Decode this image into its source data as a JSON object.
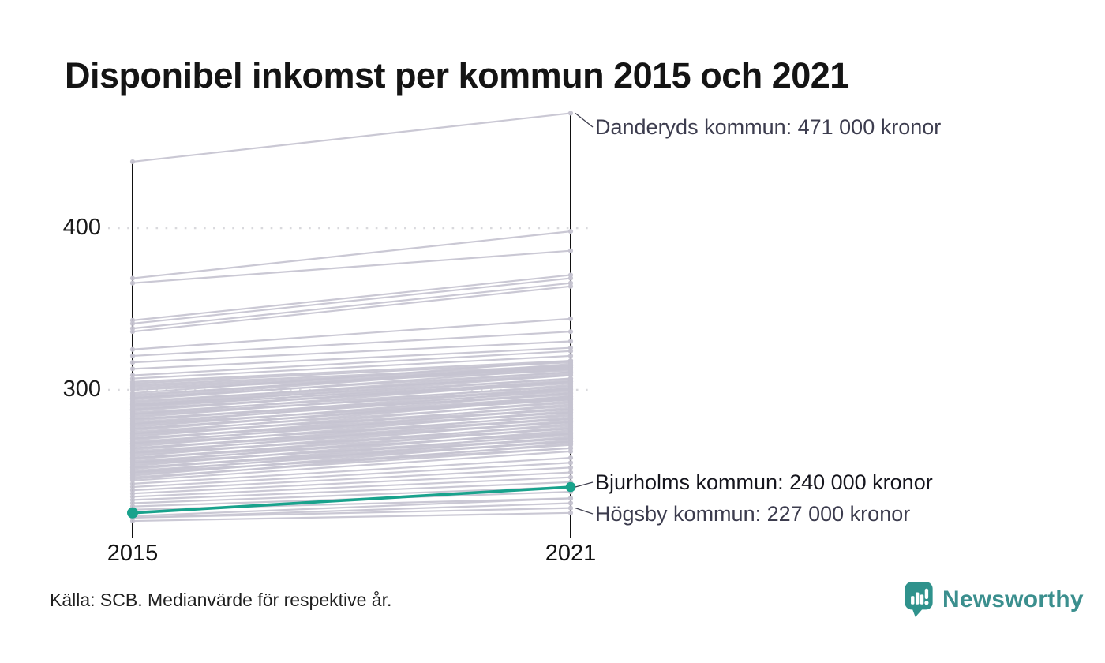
{
  "title": "Disponibel inkomst per kommun 2015 och 2021",
  "source_note": "Källa: SCB. Medianvärde för respektive år.",
  "branding": {
    "logo_text": "Newsworthy",
    "logo_color": "#2f928c"
  },
  "chart_data": {
    "type": "line",
    "subtype": "slopegraph",
    "title": "Disponibel inkomst per kommun 2015 och 2021",
    "x": [
      "2015",
      "2021"
    ],
    "xlabel": "",
    "ylabel": "",
    "unit": "tusen kronor",
    "yticks": [
      400,
      300
    ],
    "ylim": [
      215,
      480
    ],
    "grid": "dotted horizontal lines at yticks",
    "legend": "none",
    "line_color": "#c5c3d0",
    "highlight_color": "#18a28c",
    "axis_color": "#111111",
    "grid_color": "#d9d9dd",
    "highlight_series": {
      "name": "Bjurholms kommun",
      "values": [
        224,
        240
      ]
    },
    "annotations": [
      {
        "series": "Danderyds kommun",
        "x": "2021",
        "value": 471,
        "label": "Danderyds kommun: 471 000 kronor"
      },
      {
        "series": "Bjurholms kommun",
        "x": "2021",
        "value": 240,
        "label": "Bjurholms kommun: 240 000 kronor",
        "highlight": true
      },
      {
        "series": "Högsby kommun",
        "x": "2021",
        "value": 227,
        "label": "Högsby kommun: 227 000 kronor"
      }
    ],
    "lines": [
      [
        441,
        471
      ],
      [
        369,
        398
      ],
      [
        366,
        386
      ],
      [
        343,
        371
      ],
      [
        341,
        369
      ],
      [
        338,
        366
      ],
      [
        336,
        364
      ],
      [
        325,
        344
      ],
      [
        321,
        336
      ],
      [
        317,
        330
      ],
      [
        313,
        326
      ],
      [
        309,
        324
      ],
      [
        307,
        321
      ],
      [
        305,
        318
      ],
      [
        304,
        317
      ],
      [
        303,
        315
      ],
      [
        302,
        314
      ],
      [
        301,
        313
      ],
      [
        300,
        312
      ],
      [
        298,
        318
      ],
      [
        297,
        314
      ],
      [
        296,
        316
      ],
      [
        295,
        311
      ],
      [
        294,
        313
      ],
      [
        293,
        309
      ],
      [
        292,
        311
      ],
      [
        291,
        307
      ],
      [
        290,
        309
      ],
      [
        290,
        305
      ],
      [
        289,
        307
      ],
      [
        288,
        304
      ],
      [
        287,
        306
      ],
      [
        286,
        302
      ],
      [
        285,
        305
      ],
      [
        284,
        301
      ],
      [
        283,
        303
      ],
      [
        282,
        299
      ],
      [
        281,
        301
      ],
      [
        280,
        298
      ],
      [
        279,
        300
      ],
      [
        278,
        296
      ],
      [
        277,
        298
      ],
      [
        276,
        294
      ],
      [
        275,
        296
      ],
      [
        274,
        292
      ],
      [
        273,
        295
      ],
      [
        272,
        290
      ],
      [
        271,
        293
      ],
      [
        270,
        288
      ],
      [
        269,
        291
      ],
      [
        268,
        286
      ],
      [
        267,
        289
      ],
      [
        266,
        284
      ],
      [
        265,
        287
      ],
      [
        264,
        282
      ],
      [
        263,
        285
      ],
      [
        262,
        280
      ],
      [
        261,
        283
      ],
      [
        260,
        278
      ],
      [
        259,
        281
      ],
      [
        258,
        276
      ],
      [
        257,
        279
      ],
      [
        256,
        274
      ],
      [
        255,
        277
      ],
      [
        254,
        272
      ],
      [
        253,
        275
      ],
      [
        252,
        270
      ],
      [
        251,
        273
      ],
      [
        250,
        268
      ],
      [
        249,
        271
      ],
      [
        248,
        266
      ],
      [
        247,
        269
      ],
      [
        246,
        264
      ],
      [
        245,
        267
      ],
      [
        244,
        262
      ],
      [
        288,
        305
      ],
      [
        282,
        297
      ],
      [
        276,
        295
      ],
      [
        270,
        286
      ],
      [
        264,
        280
      ],
      [
        258,
        273
      ],
      [
        252,
        268
      ],
      [
        285,
        300
      ],
      [
        279,
        294
      ],
      [
        273,
        288
      ],
      [
        267,
        282
      ],
      [
        261,
        276
      ],
      [
        255,
        270
      ],
      [
        249,
        264
      ],
      [
        291,
        310
      ],
      [
        295,
        315
      ],
      [
        242,
        258
      ],
      [
        240,
        255
      ],
      [
        238,
        252
      ],
      [
        236,
        249
      ],
      [
        234,
        246
      ],
      [
        232,
        243
      ],
      [
        230,
        240
      ],
      [
        228,
        237
      ],
      [
        226,
        233
      ],
      [
        222,
        233
      ],
      [
        221,
        230
      ],
      [
        221,
        227
      ],
      [
        219,
        224
      ]
    ]
  }
}
